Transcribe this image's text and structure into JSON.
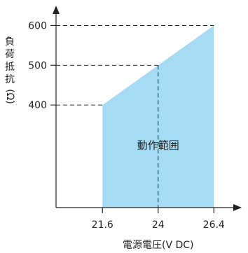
{
  "chart_data": {
    "type": "area",
    "xlabel": "電源電圧(V DC)",
    "ylabel_chars": [
      "負",
      "荷",
      "抵",
      "抗",
      "(Ω)"
    ],
    "x_ticks": [
      "21.6",
      "24",
      "26.4"
    ],
    "y_ticks": [
      "400",
      "500",
      "600"
    ],
    "xlim": [
      19.6,
      27.6
    ],
    "ylim": [
      142,
      650
    ],
    "region_label": "動作範囲",
    "region": {
      "top_edge": [
        {
          "x": 21.6,
          "y": 400
        },
        {
          "x": 24.0,
          "y": 500
        },
        {
          "x": 26.4,
          "y": 600
        }
      ],
      "y_min": 142
    },
    "fill_color": "#a6dcf3"
  }
}
